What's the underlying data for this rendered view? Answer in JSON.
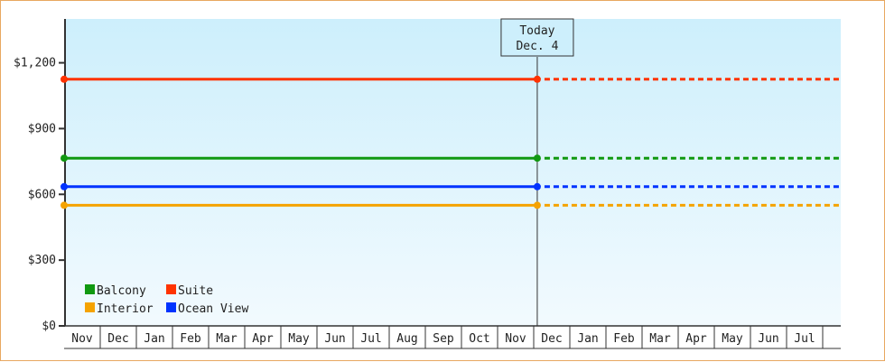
{
  "chart_data": {
    "type": "line",
    "ylim": [
      0,
      1400
    ],
    "y_ticks": [
      {
        "value": 0,
        "label": "$0"
      },
      {
        "value": 300,
        "label": "$300"
      },
      {
        "value": 600,
        "label": "$600"
      },
      {
        "value": 900,
        "label": "$900"
      },
      {
        "value": 1200,
        "label": "$1,200"
      }
    ],
    "x_months": [
      "Nov",
      "Dec",
      "Jan",
      "Feb",
      "Mar",
      "Apr",
      "May",
      "Jun",
      "Jul",
      "Aug",
      "Sep",
      "Oct",
      "Nov",
      "Dec",
      "Jan",
      "Feb",
      "Mar",
      "Apr",
      "May",
      "Jun",
      "Jul"
    ],
    "today_marker": {
      "line1": "Today",
      "line2": "Dec. 4",
      "month_index": 13,
      "day": 4
    },
    "legend_placement": "bottom-left",
    "grid": false,
    "series": [
      {
        "name": "Balcony",
        "color": "#119911",
        "value": 765
      },
      {
        "name": "Suite",
        "color": "#ff3300",
        "value": 1125
      },
      {
        "name": "Interior",
        "color": "#f5a300",
        "value": 550
      },
      {
        "name": "Ocean View",
        "color": "#0033ff",
        "value": 635
      }
    ],
    "style": {
      "line_past": "solid",
      "line_future": "dotted",
      "background_top": "#cdeffc",
      "background_bottom": "#f2fafe"
    }
  }
}
